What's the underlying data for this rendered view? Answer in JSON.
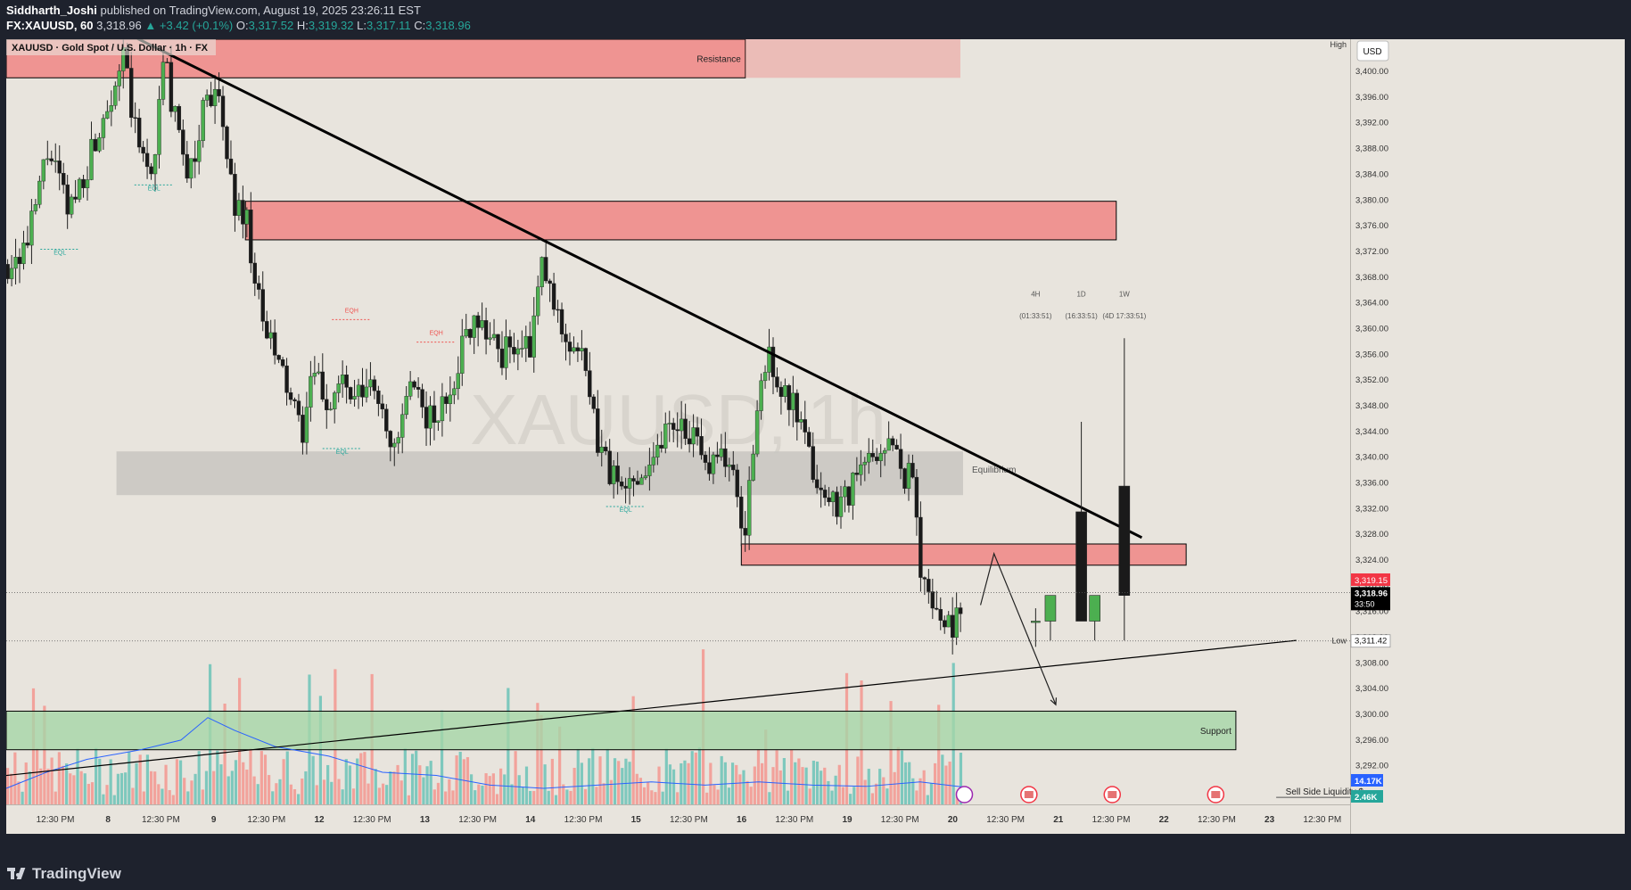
{
  "header": {
    "author": "Siddharth_Joshi",
    "published_text": "published on TradingView.com, August 19, 2025 23:26:11 EST",
    "symbol_line": "FX:XAUUSD, 60",
    "last_price": "3,318.96",
    "change": "▲ +3.42 (+0.1%)",
    "o_label": "O:",
    "o": "3,317.52",
    "h_label": "H:",
    "h": "3,319.32",
    "l_label": "L:",
    "l": "3,317.11",
    "c_label": "C:",
    "c": "3,318.96"
  },
  "legend": {
    "title": "XAUUSD · Gold Spot / U.S. Dollar · 1h · FX"
  },
  "watermark": "XAUUSD, 1h",
  "currency": "USD",
  "footer": {
    "brand": "TradingView"
  },
  "colors": {
    "background": "#e8e4dd",
    "bull": "#4caf50",
    "bear": "#1a1a1a",
    "resistance_zone": "#f08080",
    "support_zone": "#a5d6a7",
    "equilibrium_zone": "#c8c6c1",
    "trendline": "#000000",
    "volume_up": "#7ec8bd",
    "volume_down": "#f2a29b",
    "volume_ma": "#2962ff",
    "eql_label": "#26a69a",
    "eqh_label": "#ef5350"
  },
  "chart_data": {
    "type": "candlestick",
    "interval": "1h",
    "ylim": [
      3286,
      3405
    ],
    "y_axis_ticks": [
      "3,400.00",
      "3,396.00",
      "3,392.00",
      "3,388.00",
      "3,384.00",
      "3,380.00",
      "3,376.00",
      "3,372.00",
      "3,368.00",
      "3,364.00",
      "3,360.00",
      "3,356.00",
      "3,352.00",
      "3,348.00",
      "3,344.00",
      "3,340.00",
      "3,336.00",
      "3,332.00",
      "3,328.00",
      "3,324.00",
      "3,320.00",
      "3,316.00",
      "3,312.00",
      "3,308.00",
      "3,304.00",
      "3,300.00",
      "3,296.00",
      "3,292.00"
    ],
    "x_axis_labels": [
      "12:30 PM",
      "8",
      "12:30 PM",
      "9",
      "12:30 PM",
      "12",
      "12:30 PM",
      "13",
      "12:30 PM",
      "14",
      "12:30 PM",
      "15",
      "12:30 PM",
      "16",
      "12:30 PM",
      "19",
      "12:30 PM",
      "20",
      "12:30 PM",
      "21",
      "12:30 PM",
      "22",
      "12:30 PM",
      "23",
      "12:30 PM"
    ],
    "price_badges": [
      {
        "text": "3,319.15",
        "value": 3319.15,
        "color": "#f23645"
      },
      {
        "text": "3,318.96",
        "value": 3318.96,
        "color": "#000000"
      },
      {
        "text": "33:50",
        "value": 3318.96,
        "color": "#000000"
      },
      {
        "text": "3,311.42",
        "value": 3311.42,
        "color": "#000000"
      }
    ],
    "high_label": "High",
    "low_label": "Low",
    "low_value": 3311.42,
    "volume_badges": [
      {
        "text": "14.17K",
        "color": "#2962ff"
      },
      {
        "text": "2.46K",
        "color": "#26a69a"
      }
    ],
    "zones": [
      {
        "label": "Resistance",
        "top": 3405,
        "bottom": 3399,
        "kind": "resistance",
        "start": 0,
        "end": 0.55
      },
      {
        "label": "",
        "top": 3405,
        "bottom": 3399,
        "kind": "resistance-faded",
        "start": 0.55,
        "end": 0.71
      },
      {
        "label": "",
        "top": 3379.8,
        "bottom": 3373.8,
        "kind": "resistance",
        "start": 0.178,
        "end": 0.826
      },
      {
        "label": "Equilibrium",
        "top": 3340.9,
        "bottom": 3334.1,
        "kind": "equilibrium",
        "start": 0.082,
        "end": 0.712
      },
      {
        "label": "",
        "top": 3326.5,
        "bottom": 3323.2,
        "kind": "resistance",
        "start": 0.547,
        "end": 0.878
      },
      {
        "label": "Support",
        "top": 3300.5,
        "bottom": 3294.5,
        "kind": "support",
        "start": 0,
        "end": 0.915
      }
    ],
    "trendlines": [
      {
        "from": [
          0.089,
          3406
        ],
        "to": [
          0.845,
          3327.5
        ],
        "width": 3
      },
      {
        "from": [
          0,
          3290.5
        ],
        "to": [
          0.96,
          3311.5
        ],
        "width": 1.2
      }
    ],
    "projection_path": [
      [
        0.725,
        3317
      ],
      [
        0.735,
        3325
      ],
      [
        0.781,
        3301.5
      ]
    ],
    "timeframe_overlay": [
      {
        "tf": "4H",
        "countdown": "(01:33:51)",
        "open": 3314.5,
        "high": 3316.5,
        "low": 3310.5,
        "close": 3314.5,
        "x": 0.766
      },
      {
        "tf": "",
        "countdown": "",
        "open": 3314.5,
        "high": 3318.5,
        "low": 3311.5,
        "close": 3318.5,
        "x": 0.777
      },
      {
        "tf": "1D",
        "countdown": "(16:33:51)",
        "open": 3331.5,
        "high": 3345.5,
        "low": 3314.5,
        "close": 3314.5,
        "x": 0.8
      },
      {
        "tf": "",
        "countdown": "",
        "open": 3314.5,
        "high": 3318.5,
        "low": 3311.5,
        "close": 3318.5,
        "x": 0.81
      },
      {
        "tf": "1W",
        "countdown": "(4D 17:33:51)",
        "open": 3335.5,
        "high": 3358.5,
        "low": 3311.5,
        "close": 3318.5,
        "x": 0.832
      }
    ],
    "annotations": [
      {
        "text": "EQL",
        "x": 0.04,
        "value": 3371.5,
        "kind": "eql"
      },
      {
        "text": "EQL",
        "x": 0.11,
        "value": 3381.5,
        "kind": "eql"
      },
      {
        "text": "EQH",
        "x": 0.257,
        "value": 3362.5,
        "kind": "eqh"
      },
      {
        "text": "EQH",
        "x": 0.32,
        "value": 3359,
        "kind": "eqh"
      },
      {
        "text": "EQL",
        "x": 0.25,
        "value": 3340.5,
        "kind": "eql"
      },
      {
        "text": "EQL",
        "x": 0.461,
        "value": 3331.5,
        "kind": "eql"
      },
      {
        "text": "Sell Side Liquidity $",
        "x": 0.952,
        "value": 3287.5,
        "kind": "label"
      }
    ],
    "event_icons": [
      0.713,
      0.761,
      0.823,
      0.9
    ],
    "candle_path": [
      [
        0.0,
        3370
      ],
      [
        0.015,
        3373
      ],
      [
        0.03,
        3388
      ],
      [
        0.045,
        3378
      ],
      [
        0.06,
        3386
      ],
      [
        0.075,
        3396
      ],
      [
        0.086,
        3402
      ],
      [
        0.097,
        3388
      ],
      [
        0.107,
        3384
      ],
      [
        0.117,
        3402
      ],
      [
        0.128,
        3388
      ],
      [
        0.138,
        3384
      ],
      [
        0.148,
        3398
      ],
      [
        0.158,
        3394
      ],
      [
        0.168,
        3380
      ],
      [
        0.178,
        3377
      ],
      [
        0.188,
        3362
      ],
      [
        0.198,
        3356
      ],
      [
        0.208,
        3351
      ],
      [
        0.218,
        3343
      ],
      [
        0.228,
        3353
      ],
      [
        0.238,
        3348
      ],
      [
        0.248,
        3352
      ],
      [
        0.258,
        3348
      ],
      [
        0.268,
        3351
      ],
      [
        0.278,
        3349
      ],
      [
        0.288,
        3340
      ],
      [
        0.298,
        3350
      ],
      [
        0.308,
        3348
      ],
      [
        0.318,
        3345
      ],
      [
        0.328,
        3350
      ],
      [
        0.338,
        3357
      ],
      [
        0.348,
        3363
      ],
      [
        0.358,
        3359
      ],
      [
        0.368,
        3356
      ],
      [
        0.378,
        3358
      ],
      [
        0.388,
        3356
      ],
      [
        0.398,
        3370
      ],
      [
        0.408,
        3362
      ],
      [
        0.418,
        3358
      ],
      [
        0.428,
        3355
      ],
      [
        0.438,
        3343
      ],
      [
        0.448,
        3338
      ],
      [
        0.458,
        3334
      ],
      [
        0.468,
        3338
      ],
      [
        0.478,
        3339
      ],
      [
        0.488,
        3344
      ],
      [
        0.498,
        3346
      ],
      [
        0.508,
        3344
      ],
      [
        0.518,
        3338
      ],
      [
        0.528,
        3342
      ],
      [
        0.538,
        3338
      ],
      [
        0.548,
        3328
      ],
      [
        0.558,
        3347
      ],
      [
        0.566,
        3357
      ],
      [
        0.576,
        3350
      ],
      [
        0.586,
        3347
      ],
      [
        0.596,
        3340
      ],
      [
        0.606,
        3334
      ],
      [
        0.616,
        3333
      ],
      [
        0.626,
        3335
      ],
      [
        0.636,
        3338
      ],
      [
        0.646,
        3341
      ],
      [
        0.656,
        3342
      ],
      [
        0.666,
        3338
      ],
      [
        0.674,
        3336
      ],
      [
        0.68,
        3322
      ],
      [
        0.688,
        3317
      ],
      [
        0.696,
        3315
      ],
      [
        0.704,
        3314
      ],
      [
        0.712,
        3318
      ]
    ],
    "volume_ma_path": [
      [
        0.0,
        3288.5
      ],
      [
        0.03,
        3291
      ],
      [
        0.06,
        3293
      ],
      [
        0.1,
        3294.5
      ],
      [
        0.13,
        3296
      ],
      [
        0.15,
        3299.5
      ],
      [
        0.17,
        3297.5
      ],
      [
        0.2,
        3295
      ],
      [
        0.24,
        3293.5
      ],
      [
        0.28,
        3291
      ],
      [
        0.32,
        3290.5
      ],
      [
        0.36,
        3289
      ],
      [
        0.4,
        3288.5
      ],
      [
        0.44,
        3289
      ],
      [
        0.48,
        3289.5
      ],
      [
        0.52,
        3289
      ],
      [
        0.56,
        3289.5
      ],
      [
        0.6,
        3289
      ],
      [
        0.64,
        3288.8
      ],
      [
        0.68,
        3289.5
      ],
      [
        0.712,
        3288.7
      ]
    ]
  }
}
